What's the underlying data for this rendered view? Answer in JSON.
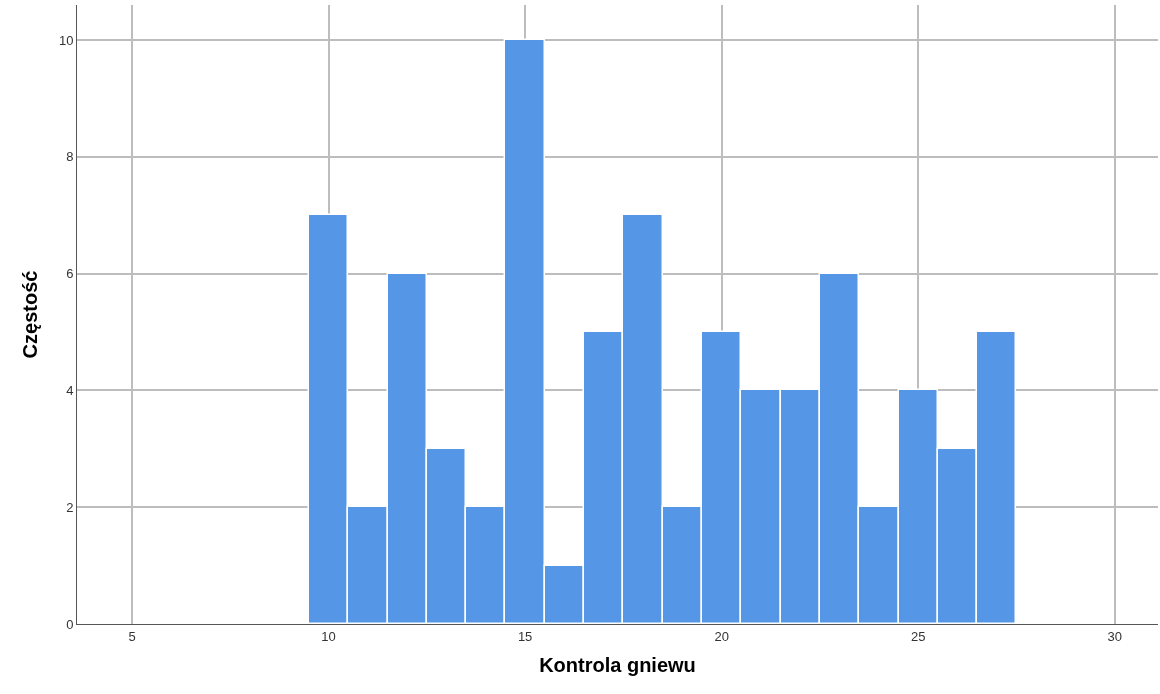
{
  "chart_data": {
    "type": "histogram",
    "xlabel": "Kontrola gniewu",
    "ylabel": "Częstość",
    "bins": [
      9.5,
      10.5,
      11.5,
      12.5,
      13.5,
      14.5,
      15.5,
      16.5,
      17.5,
      18.5,
      19.5,
      20.5,
      21.5,
      22.5,
      23.5,
      24.5,
      25.5,
      26.5,
      27.5
    ],
    "values": [
      7,
      2,
      6,
      3,
      2,
      10,
      1,
      5,
      7,
      2,
      5,
      4,
      4,
      6,
      2,
      4,
      3,
      5
    ],
    "color": "#5596e6",
    "xlim": [
      3.6,
      31.1
    ],
    "xticks": [
      5,
      10,
      15,
      20,
      25,
      30
    ],
    "ylim": [
      0,
      10.6
    ],
    "yticks": [
      0,
      2,
      4,
      6,
      8,
      10
    ],
    "grid": true
  }
}
